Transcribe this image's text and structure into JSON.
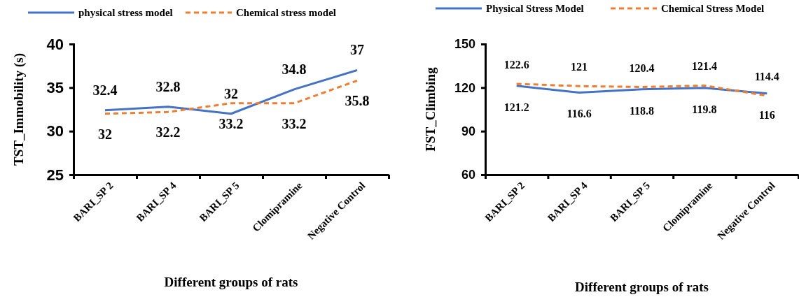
{
  "chart_data": [
    {
      "type": "line",
      "xlabel": "Different groups of rats",
      "ylabel": "TST_Immobility (s)",
      "categories": [
        "BARI_SP 2",
        "BARI_SP 4",
        "BARI_SP 5",
        "Clomipramine",
        "Negative Control"
      ],
      "ylim": [
        25,
        40
      ],
      "yticks": [
        25,
        30,
        35,
        40
      ],
      "legend": "top",
      "data_labels": true,
      "grid": false,
      "marker": "none",
      "series": [
        {
          "name": "physical stress model",
          "color": "#4472c4",
          "line_style": "solid",
          "values": [
            32.4,
            32.8,
            32,
            34.8,
            37
          ]
        },
        {
          "name": "Chemical stress model",
          "color": "#ed7d31",
          "line_style": "dashed",
          "values": [
            32,
            32.2,
            33.2,
            33.2,
            35.8
          ]
        }
      ]
    },
    {
      "type": "line",
      "xlabel": "Different groups of rats",
      "ylabel": "FST_Climbing",
      "categories": [
        "BARI_SP 2",
        "BARI_SP 4",
        "BARI_SP 5",
        "Clomipramine",
        "Negative Control"
      ],
      "ylim": [
        60,
        150
      ],
      "yticks": [
        60,
        90,
        120,
        150
      ],
      "legend": "top",
      "data_labels": true,
      "grid": false,
      "marker": "none",
      "series": [
        {
          "name": "Physical Stress Model",
          "color": "#4472c4",
          "line_style": "solid",
          "values": [
            121.2,
            116.6,
            118.8,
            119.8,
            116
          ]
        },
        {
          "name": "Chemical Stress Model",
          "color": "#ed7d31",
          "line_style": "dashed",
          "values": [
            122.6,
            121,
            120.4,
            121.4,
            114.4
          ]
        }
      ]
    }
  ]
}
